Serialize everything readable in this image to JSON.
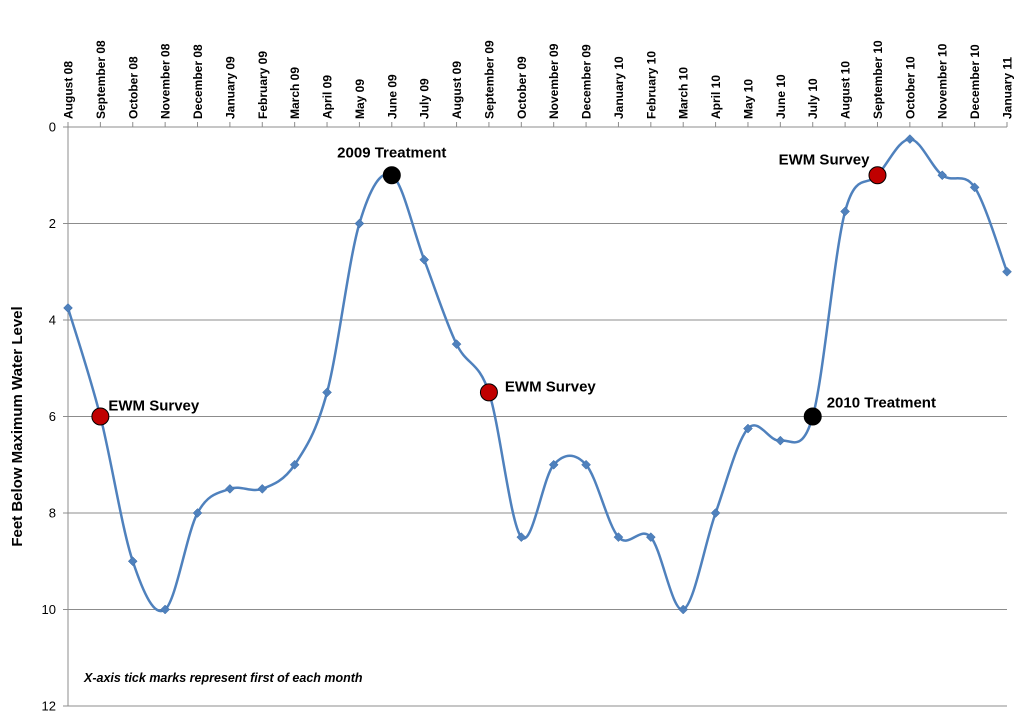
{
  "chart_data": {
    "type": "line",
    "title": "",
    "xlabel": "",
    "ylabel": "Feet Below Maximum Water Level",
    "y_inverted": true,
    "ylim": [
      0,
      12
    ],
    "yticks": [
      0,
      2,
      4,
      6,
      8,
      10,
      12
    ],
    "grid": "horizontal",
    "colors": {
      "line": "#4f81bd",
      "marker": "#4f81bd",
      "survey": "#c00000",
      "treatment": "#000000"
    },
    "months": [
      "August 08",
      "September 08",
      "October 08",
      "November 08",
      "December 08",
      "January 09",
      "February 09",
      "March 09",
      "April 09",
      "May 09",
      "June 09",
      "July 09",
      "August 09",
      "September 09",
      "October 09",
      "November 09",
      "December 09",
      "January 10",
      "February 10",
      "March 10",
      "April 10",
      "May 10",
      "June 10",
      "July 10",
      "August 10",
      "September 10",
      "October 10",
      "November 10",
      "December 10",
      "January 11"
    ],
    "series": [
      {
        "values": [
          3.75,
          6,
          9,
          10,
          8,
          7.5,
          7.5,
          7,
          5.5,
          2,
          1,
          2.75,
          4.5,
          5.5,
          8.5,
          7,
          7,
          8.5,
          8.5,
          10,
          8,
          6.25,
          6.5,
          6,
          1.75,
          1,
          0.25,
          1,
          1.25,
          3
        ]
      }
    ],
    "highlights": [
      {
        "index": 1,
        "kind": "survey",
        "label": "EWM Survey"
      },
      {
        "index": 10,
        "kind": "treatment",
        "label": "2009 Treatment"
      },
      {
        "index": 13,
        "kind": "survey",
        "label": "EWM Survey"
      },
      {
        "index": 23,
        "kind": "treatment",
        "label": "2010 Treatment"
      },
      {
        "index": 25,
        "kind": "survey",
        "label": "EWM Survey"
      }
    ],
    "note": "X-axis tick marks represent first of each month"
  }
}
